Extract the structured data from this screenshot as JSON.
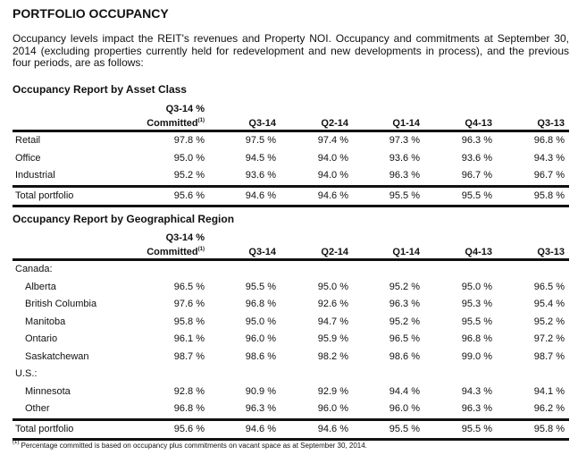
{
  "title": "PORTFOLIO OCCUPANCY",
  "intro": "Occupancy levels impact the REIT's revenues and Property NOI.  Occupancy and commitments at September 30, 2014 (excluding properties currently held for redevelopment and new developments in process), and the previous four periods, are as follows:",
  "columns": {
    "committed_line1": "Q3-14 %",
    "committed_line2": "Committed",
    "footnote_mark": "(1)",
    "periods": [
      "Q3-14",
      "Q2-14",
      "Q1-14",
      "Q4-13",
      "Q3-13"
    ]
  },
  "asset_class": {
    "title": "Occupancy Report by Asset Class",
    "rows": [
      {
        "label": "Retail",
        "values": [
          "97.8 %",
          "97.5 %",
          "97.4 %",
          "97.3 %",
          "96.3 %",
          "96.8 %"
        ]
      },
      {
        "label": "Office",
        "values": [
          "95.0 %",
          "94.5 %",
          "94.0 %",
          "93.6 %",
          "93.6 %",
          "94.3 %"
        ]
      },
      {
        "label": "Industrial",
        "values": [
          "95.2 %",
          "93.6 %",
          "94.0 %",
          "96.3 %",
          "96.7 %",
          "96.7 %"
        ]
      }
    ],
    "total": {
      "label": "Total portfolio",
      "values": [
        "95.6 %",
        "94.6 %",
        "94.6 %",
        "95.5 %",
        "95.5 %",
        "95.8 %"
      ]
    }
  },
  "region": {
    "title": "Occupancy Report by Geographical Region",
    "canada_label": "Canada:",
    "canada": [
      {
        "label": "Alberta",
        "values": [
          "96.5 %",
          "95.5 %",
          "95.0 %",
          "95.2 %",
          "95.0 %",
          "96.5 %"
        ]
      },
      {
        "label": "British Columbia",
        "values": [
          "97.6 %",
          "96.8 %",
          "92.6 %",
          "96.3 %",
          "95.3 %",
          "95.4 %"
        ]
      },
      {
        "label": "Manitoba",
        "values": [
          "95.8 %",
          "95.0 %",
          "94.7 %",
          "95.2 %",
          "95.5 %",
          "95.2 %"
        ]
      },
      {
        "label": "Ontario",
        "values": [
          "96.1 %",
          "96.0 %",
          "95.9 %",
          "96.5 %",
          "96.8 %",
          "97.2 %"
        ]
      },
      {
        "label": "Saskatchewan",
        "values": [
          "98.7 %",
          "98.6 %",
          "98.2 %",
          "98.6 %",
          "99.0 %",
          "98.7 %"
        ]
      }
    ],
    "us_label": "U.S.:",
    "us": [
      {
        "label": "Minnesota",
        "values": [
          "92.8 %",
          "90.9 %",
          "92.9 %",
          "94.4 %",
          "94.3 %",
          "94.1 %"
        ]
      },
      {
        "label": "Other",
        "values": [
          "96.8 %",
          "96.3 %",
          "96.0 %",
          "96.0 %",
          "96.3 %",
          "96.2 %"
        ]
      }
    ],
    "total": {
      "label": "Total portfolio",
      "values": [
        "95.6 %",
        "94.6 %",
        "94.6 %",
        "95.5 %",
        "95.5 %",
        "95.8 %"
      ]
    }
  },
  "footnote": {
    "mark": "(1)",
    "text": " Percentage committed is based on occupancy plus commitments on vacant space as at September 30, 2014."
  }
}
